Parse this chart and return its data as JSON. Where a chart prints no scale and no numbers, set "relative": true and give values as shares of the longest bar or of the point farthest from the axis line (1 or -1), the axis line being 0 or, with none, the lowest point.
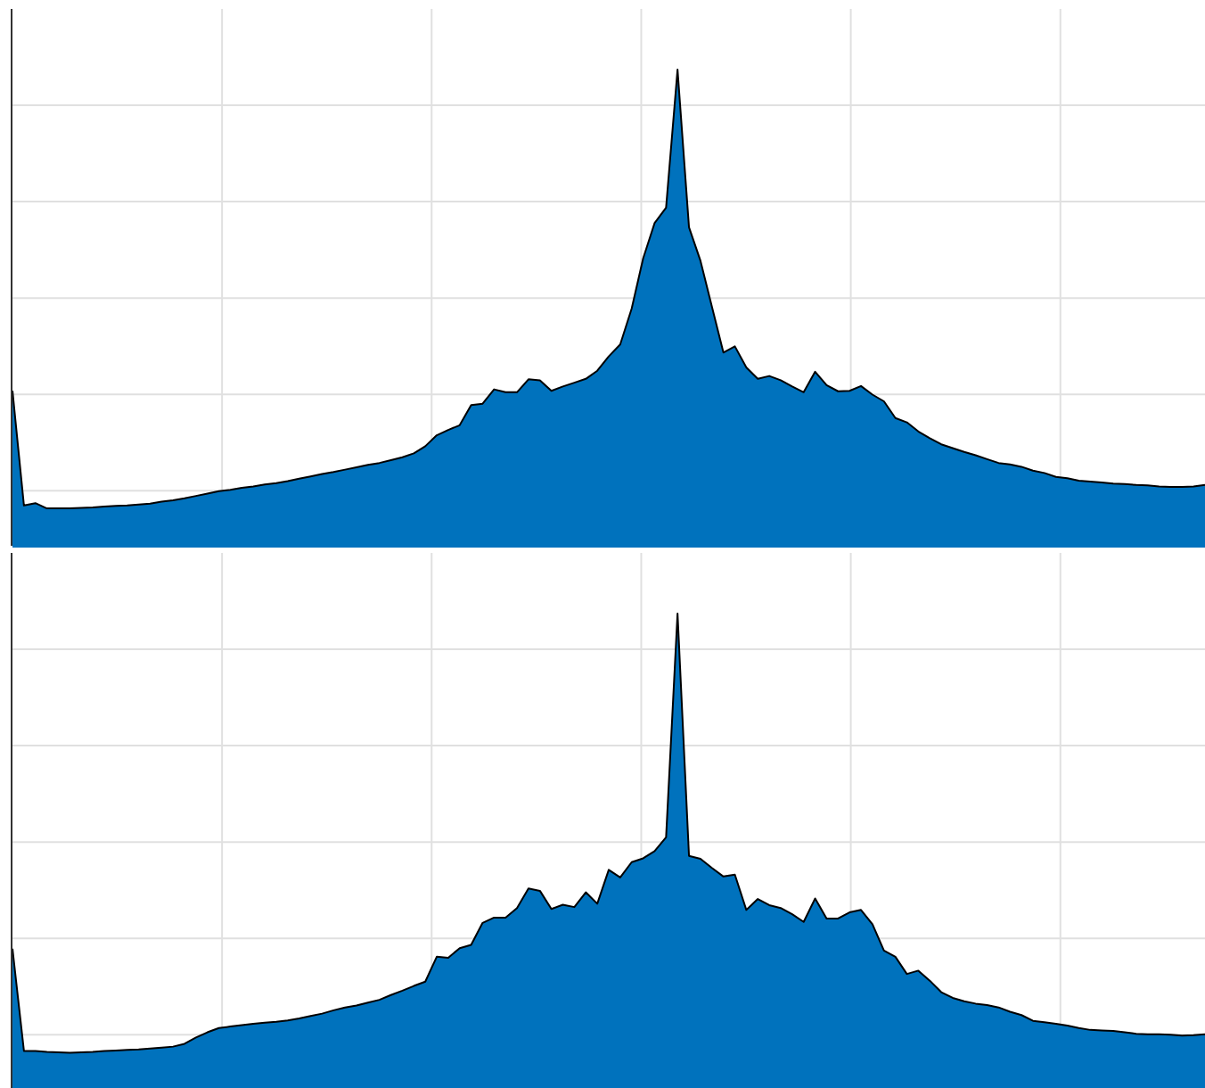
{
  "chart_data": [
    {
      "type": "area",
      "relative": true,
      "color": "#0072bd",
      "grid": true,
      "categories": [
        null,
        null,
        null,
        null,
        null,
        null,
        null,
        null,
        null,
        null,
        null,
        null,
        null,
        null,
        null,
        null,
        null,
        null,
        null,
        null,
        null,
        null,
        null,
        null,
        null,
        null,
        null,
        null,
        null,
        null,
        null,
        null,
        null,
        null,
        null,
        null,
        null,
        null,
        null,
        null,
        null,
        null,
        null,
        null,
        null,
        null,
        null,
        null,
        null,
        null,
        null,
        null,
        null,
        null,
        null,
        null,
        null,
        null,
        null,
        null,
        null,
        null,
        null,
        null,
        null,
        null,
        null,
        null,
        null,
        null,
        null,
        null,
        null,
        null,
        null,
        null,
        null,
        null,
        null,
        null,
        null,
        null,
        null,
        null,
        null,
        null,
        null,
        null,
        null,
        null,
        null,
        null,
        null,
        null,
        null,
        null,
        null,
        null,
        null,
        null,
        null,
        null,
        null,
        null,
        null
      ],
      "values": [
        0.328,
        0.088,
        0.093,
        0.082,
        0.082,
        0.082,
        0.083,
        0.084,
        0.086,
        0.087,
        0.088,
        0.09,
        0.092,
        0.096,
        0.099,
        0.103,
        0.108,
        0.113,
        0.118,
        0.121,
        0.125,
        0.128,
        0.132,
        0.135,
        0.139,
        0.144,
        0.149,
        0.154,
        0.158,
        0.163,
        0.168,
        0.173,
        0.177,
        0.183,
        0.189,
        0.197,
        0.212,
        0.235,
        0.246,
        0.256,
        0.298,
        0.301,
        0.331,
        0.325,
        0.325,
        0.352,
        0.35,
        0.328,
        0.337,
        0.345,
        0.353,
        0.37,
        0.4,
        0.425,
        0.5,
        0.605,
        0.679,
        0.711,
        1,
        0.67,
        0.6,
        0.504,
        0.408,
        0.421,
        0.377,
        0.353,
        0.359,
        0.35,
        0.337,
        0.325,
        0.368,
        0.34,
        0.327,
        0.328,
        0.338,
        0.32,
        0.306,
        0.271,
        0.262,
        0.243,
        0.229,
        0.216,
        0.208,
        0.2,
        0.193,
        0.185,
        0.177,
        0.174,
        0.169,
        0.161,
        0.156,
        0.148,
        0.145,
        0.14,
        0.138,
        0.136,
        0.134,
        0.133,
        0.131,
        0.13,
        0.128,
        0.127,
        0.127,
        0.128,
        0.131
      ]
    },
    {
      "type": "area",
      "relative": true,
      "color": "#0072bd",
      "grid": true,
      "categories": [
        null,
        null,
        null,
        null,
        null,
        null,
        null,
        null,
        null,
        null,
        null,
        null,
        null,
        null,
        null,
        null,
        null,
        null,
        null,
        null,
        null,
        null,
        null,
        null,
        null,
        null,
        null,
        null,
        null,
        null,
        null,
        null,
        null,
        null,
        null,
        null,
        null,
        null,
        null,
        null,
        null,
        null,
        null,
        null,
        null,
        null,
        null,
        null,
        null,
        null,
        null,
        null,
        null,
        null,
        null,
        null,
        null,
        null,
        null,
        null,
        null,
        null,
        null,
        null,
        null,
        null,
        null,
        null,
        null,
        null,
        null,
        null,
        null,
        null,
        null,
        null,
        null,
        null,
        null,
        null,
        null,
        null,
        null,
        null,
        null,
        null,
        null,
        null,
        null,
        null,
        null,
        null,
        null,
        null,
        null,
        null,
        null,
        null,
        null,
        null,
        null,
        null,
        null,
        null,
        null
      ],
      "values": [
        0.299,
        0.085,
        0.085,
        0.083,
        0.082,
        0.081,
        0.082,
        0.083,
        0.085,
        0.086,
        0.087,
        0.088,
        0.09,
        0.092,
        0.094,
        0.1,
        0.113,
        0.124,
        0.133,
        0.136,
        0.139,
        0.142,
        0.144,
        0.146,
        0.149,
        0.153,
        0.158,
        0.163,
        0.17,
        0.176,
        0.18,
        0.186,
        0.192,
        0.202,
        0.211,
        0.221,
        0.23,
        0.282,
        0.28,
        0.3,
        0.307,
        0.353,
        0.364,
        0.364,
        0.384,
        0.425,
        0.42,
        0.382,
        0.391,
        0.386,
        0.417,
        0.393,
        0.464,
        0.448,
        0.48,
        0.488,
        0.503,
        0.532,
        1,
        0.493,
        0.487,
        0.468,
        0.45,
        0.454,
        0.38,
        0.403,
        0.39,
        0.384,
        0.371,
        0.355,
        0.404,
        0.362,
        0.362,
        0.375,
        0.38,
        0.35,
        0.295,
        0.282,
        0.246,
        0.253,
        0.232,
        0.208,
        0.196,
        0.189,
        0.184,
        0.181,
        0.176,
        0.167,
        0.16,
        0.148,
        0.145,
        0.142,
        0.138,
        0.133,
        0.129,
        0.128,
        0.127,
        0.124,
        0.121,
        0.12,
        0.12,
        0.119,
        0.117,
        0.118,
        0.12
      ]
    }
  ]
}
